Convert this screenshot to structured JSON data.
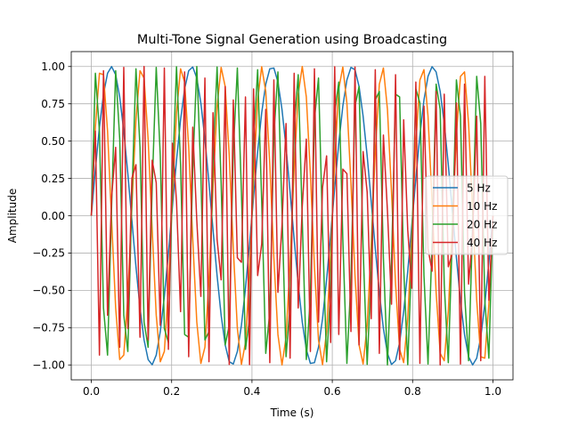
{
  "chart_data": {
    "type": "line",
    "title": "Multi-Tone Signal Generation using Broadcasting",
    "xlabel": "Time (s)",
    "ylabel": "Amplitude",
    "xlim": [
      -0.05,
      1.05
    ],
    "ylim": [
      -1.1,
      1.1
    ],
    "x_ticks": [
      0.0,
      0.2,
      0.4,
      0.6,
      0.8,
      1.0
    ],
    "x_tick_labels": [
      "0.0",
      "0.2",
      "0.4",
      "0.6",
      "0.8",
      "1.0"
    ],
    "y_ticks": [
      -1.0,
      -0.75,
      -0.5,
      -0.25,
      0.0,
      0.25,
      0.5,
      0.75,
      1.0
    ],
    "y_tick_labels": [
      "−1.00",
      "−0.75",
      "−0.50",
      "−0.25",
      "0.00",
      "0.25",
      "0.50",
      "0.75",
      "1.00"
    ],
    "grid": true,
    "legend_position": "center-right",
    "function": "sine",
    "x_range": [
      0,
      1
    ],
    "samples": 100,
    "series": [
      {
        "name": "5 Hz",
        "frequency": 5,
        "amplitude": 1,
        "color": "#1f77b4"
      },
      {
        "name": "10 Hz",
        "frequency": 10,
        "amplitude": 1,
        "color": "#ff7f0e"
      },
      {
        "name": "20 Hz",
        "frequency": 20,
        "amplitude": 1,
        "color": "#2ca02c"
      },
      {
        "name": "40 Hz",
        "frequency": 40,
        "amplitude": 1,
        "color": "#d62728"
      }
    ]
  }
}
